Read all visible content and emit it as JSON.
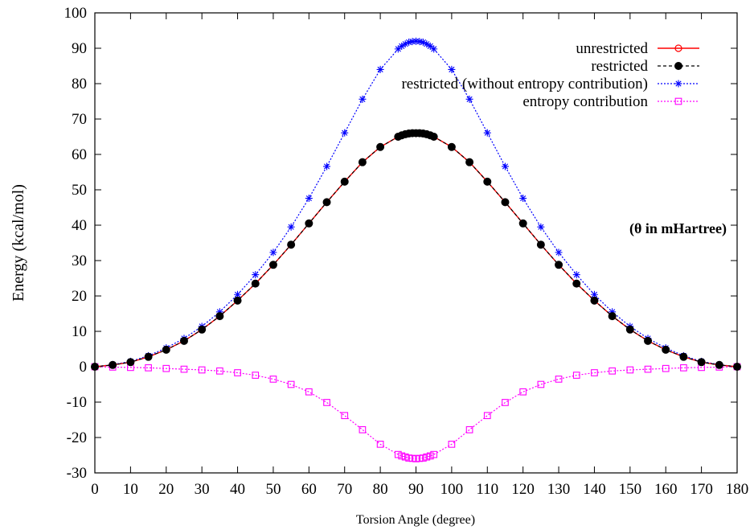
{
  "chart_data": {
    "type": "line",
    "title": "",
    "xlabel": "Torsion Angle (degree)",
    "ylabel": "Energy (kcal/mol)",
    "xlim": [
      0,
      180
    ],
    "ylim": [
      -30,
      100
    ],
    "xticks": [
      0,
      10,
      20,
      30,
      40,
      50,
      60,
      70,
      80,
      90,
      100,
      110,
      120,
      130,
      140,
      150,
      160,
      170,
      180
    ],
    "yticks": [
      -30,
      -20,
      -10,
      0,
      10,
      20,
      30,
      40,
      50,
      60,
      70,
      80,
      90,
      100
    ],
    "grid": false,
    "legend_position": "top-right",
    "annotation": "(θ in mHartree)",
    "x": [
      0,
      5,
      10,
      15,
      20,
      25,
      30,
      35,
      40,
      45,
      50,
      55,
      60,
      65,
      70,
      75,
      80,
      85,
      86,
      87,
      88,
      89,
      90,
      91,
      92,
      93,
      94,
      95,
      100,
      105,
      110,
      115,
      120,
      125,
      130,
      135,
      140,
      145,
      150,
      155,
      160,
      165,
      170,
      175,
      180
    ],
    "series": [
      {
        "name": "unrestricted",
        "color": "#ff0000",
        "marker": "open-circle",
        "line": "solid",
        "values": [
          0,
          0.5,
          1.3,
          2.8,
          4.8,
          7.3,
          10.5,
          14.3,
          18.7,
          23.5,
          28.8,
          34.5,
          40.5,
          46.5,
          52.3,
          57.8,
          62.1,
          65.0,
          65.4,
          65.7,
          65.9,
          66.0,
          66.0,
          66.0,
          65.9,
          65.7,
          65.4,
          65.0,
          62.1,
          57.8,
          52.3,
          46.5,
          40.5,
          34.5,
          28.8,
          23.5,
          18.7,
          14.3,
          10.5,
          7.3,
          4.8,
          2.8,
          1.3,
          0.5,
          0
        ]
      },
      {
        "name": "restricted",
        "color": "#000000",
        "marker": "filled-circle",
        "line": "dashed",
        "values": [
          0,
          0.5,
          1.3,
          2.8,
          4.8,
          7.3,
          10.5,
          14.3,
          18.7,
          23.5,
          28.8,
          34.5,
          40.5,
          46.5,
          52.3,
          57.8,
          62.1,
          65.0,
          65.4,
          65.7,
          65.9,
          66.0,
          66.0,
          66.0,
          65.9,
          65.7,
          65.4,
          65.0,
          62.1,
          57.8,
          52.3,
          46.5,
          40.5,
          34.5,
          28.8,
          23.5,
          18.7,
          14.3,
          10.5,
          7.3,
          4.8,
          2.8,
          1.3,
          0.5,
          0
        ]
      },
      {
        "name": "restricted (without entropy contribution)",
        "color": "#0000ff",
        "marker": "star",
        "line": "dotted",
        "values": [
          0,
          0.6,
          1.5,
          3.1,
          5.3,
          8.0,
          11.4,
          15.5,
          20.4,
          26.0,
          32.3,
          39.5,
          47.6,
          56.6,
          66.1,
          75.6,
          84.0,
          89.8,
          90.6,
          91.2,
          91.7,
          91.9,
          92.0,
          91.9,
          91.7,
          91.2,
          90.6,
          89.8,
          84.0,
          75.6,
          66.1,
          56.6,
          47.6,
          39.5,
          32.3,
          26.0,
          20.4,
          15.5,
          11.4,
          8.0,
          5.3,
          3.1,
          1.5,
          0.6,
          0
        ]
      },
      {
        "name": "entropy contribution",
        "color": "#ff00ff",
        "marker": "open-square",
        "line": "dotted",
        "values": [
          0,
          -0.1,
          -0.2,
          -0.3,
          -0.5,
          -0.7,
          -0.9,
          -1.2,
          -1.7,
          -2.4,
          -3.5,
          -5.0,
          -7.1,
          -10.1,
          -13.8,
          -17.8,
          -21.9,
          -24.8,
          -25.2,
          -25.5,
          -25.8,
          -25.9,
          -26.0,
          -25.9,
          -25.8,
          -25.5,
          -25.2,
          -24.8,
          -21.9,
          -17.8,
          -13.8,
          -10.1,
          -7.1,
          -5.0,
          -3.5,
          -2.4,
          -1.7,
          -1.2,
          -0.9,
          -0.7,
          -0.5,
          -0.3,
          -0.2,
          -0.1,
          0
        ]
      }
    ]
  }
}
